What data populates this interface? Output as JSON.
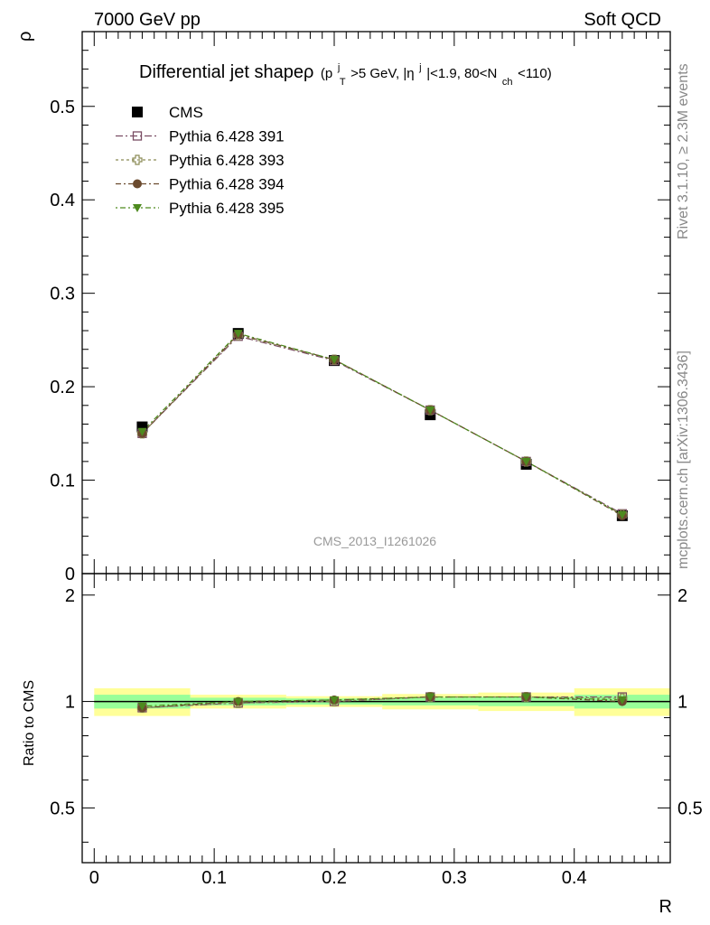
{
  "header": {
    "left": "7000 GeV pp",
    "right": "Soft QCD"
  },
  "side_text": {
    "rivet": "Rivet 3.1.10, ≥ 2.3M events",
    "mcplots": "mcplots.cern.ch [arXiv:1306.3436]"
  },
  "plot_title": {
    "main": "Differential jet shapeρ",
    "pt": "(p",
    "pt_sup": "j",
    "pt_sub": "T",
    "pt_rest": ">5 GeV, |η",
    "eta_sup": "j",
    "eta_rest": "|<1.9, 80<N",
    "nch_sub": "ch",
    "nch_rest": "<110)"
  },
  "watermark": "CMS_2013_I1261026",
  "colors": {
    "cms": "#000000",
    "p391": "#7a4d63",
    "p393": "#8a8a55",
    "p394": "#6b4a2e",
    "p395": "#4d8a1e",
    "band_inner": "#99ff99",
    "band_outer": "#ffff99"
  },
  "chart_data": [
    {
      "type": "scatter",
      "panel": "main",
      "xlabel": "R",
      "ylabel": "ρ",
      "xlim": [
        -0.01,
        0.48
      ],
      "ylim": [
        0,
        0.58
      ],
      "yticks": [
        "0",
        "0.1",
        "0.2",
        "0.3",
        "0.4",
        "0.5"
      ],
      "ytick_values": [
        0,
        0.1,
        0.2,
        0.3,
        0.4,
        0.5
      ],
      "x": [
        0.04,
        0.12,
        0.2,
        0.28,
        0.36,
        0.44
      ],
      "legend_position": "top-left",
      "series": [
        {
          "name": "CMS",
          "marker": "square-filled",
          "values": [
            0.157,
            0.257,
            0.228,
            0.17,
            0.117,
            0.062
          ]
        },
        {
          "name": "Pythia 6.428 391",
          "marker": "square-open",
          "values": [
            0.15,
            0.254,
            0.228,
            0.175,
            0.12,
            0.064
          ]
        },
        {
          "name": "Pythia 6.428 393",
          "marker": "cross-open",
          "values": [
            0.15,
            0.255,
            0.229,
            0.175,
            0.12,
            0.063
          ]
        },
        {
          "name": "Pythia 6.428 394",
          "marker": "circle-filled",
          "values": [
            0.15,
            0.256,
            0.229,
            0.175,
            0.12,
            0.062
          ]
        },
        {
          "name": "Pythia 6.428 395",
          "marker": "triangle-down-filled",
          "values": [
            0.152,
            0.257,
            0.229,
            0.175,
            0.12,
            0.063
          ]
        }
      ]
    },
    {
      "type": "scatter",
      "panel": "ratio",
      "xlabel": "R",
      "ylabel": "Ratio to CMS",
      "xlim": [
        -0.01,
        0.48
      ],
      "ylim": [
        0.35,
        2.3
      ],
      "log_scale": true,
      "xticks": [
        "0",
        "0.1",
        "0.2",
        "0.3",
        "0.4"
      ],
      "xtick_values": [
        0,
        0.1,
        0.2,
        0.3,
        0.4
      ],
      "yticks": [
        "0.5",
        "1",
        "2"
      ],
      "ytick_values": [
        0.5,
        1,
        2
      ],
      "x": [
        0.04,
        0.12,
        0.2,
        0.28,
        0.36,
        0.44
      ],
      "band_edges": [
        0.0,
        0.08,
        0.16,
        0.24,
        0.32,
        0.4,
        0.48
      ],
      "band_inner": [
        [
          0.955,
          1.045
        ],
        [
          0.975,
          1.025
        ],
        [
          0.98,
          1.02
        ],
        [
          0.975,
          1.025
        ],
        [
          0.97,
          1.03
        ],
        [
          0.955,
          1.045
        ]
      ],
      "band_outer": [
        [
          0.91,
          1.09
        ],
        [
          0.955,
          1.045
        ],
        [
          0.965,
          1.035
        ],
        [
          0.95,
          1.05
        ],
        [
          0.94,
          1.06
        ],
        [
          0.91,
          1.09
        ]
      ],
      "series": [
        {
          "name": "Pythia 6.428 391",
          "values": [
            0.96,
            0.99,
            1.0,
            1.03,
            1.03,
            1.03
          ]
        },
        {
          "name": "Pythia 6.428 393",
          "values": [
            0.96,
            0.99,
            1.0,
            1.03,
            1.03,
            1.02
          ]
        },
        {
          "name": "Pythia 6.428 394",
          "values": [
            0.96,
            1.0,
            1.01,
            1.03,
            1.03,
            1.0
          ]
        },
        {
          "name": "Pythia 6.428 395",
          "values": [
            0.97,
            1.0,
            1.01,
            1.03,
            1.03,
            1.01
          ]
        }
      ]
    }
  ]
}
